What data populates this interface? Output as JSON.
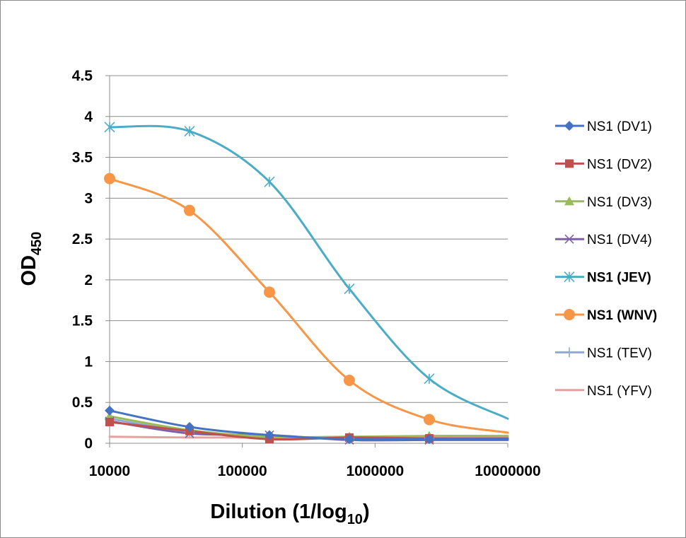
{
  "chart_data": {
    "type": "line",
    "title": "",
    "xlabel": "Dilution (1/log",
    "xlabel_sub": "10",
    "xlabel_tail": ")",
    "ylabel": "OD",
    "ylabel_sub": "450",
    "x_scale": "log",
    "xlim": [
      10000,
      10000000
    ],
    "ylim": [
      0,
      4.5
    ],
    "x_ticks": [
      10000,
      100000,
      1000000,
      10000000
    ],
    "x_tick_labels": [
      "10000",
      "100000",
      "1000000",
      "10000000"
    ],
    "y_ticks": [
      0,
      0.5,
      1,
      1.5,
      2,
      2.5,
      3,
      3.5,
      4,
      4.5
    ],
    "y_tick_labels": [
      "0",
      "0.5",
      "1",
      "1.5",
      "2",
      "2.5",
      "3",
      "3.5",
      "4",
      "4.5"
    ],
    "grid": "horizontal",
    "legend_position": "right",
    "x": [
      10000,
      40000,
      160000,
      640000,
      2560000,
      10000000
    ],
    "series": [
      {
        "name": "NS1 (DV1)",
        "color": "#4472c4",
        "marker": "diamond",
        "bold": false,
        "values": [
          0.4,
          0.2,
          0.1,
          0.05,
          0.05,
          0.05
        ]
      },
      {
        "name": "NS1 (DV2)",
        "color": "#c0504d",
        "marker": "square",
        "bold": false,
        "values": [
          0.26,
          0.15,
          0.05,
          0.07,
          0.06,
          0.06
        ]
      },
      {
        "name": "NS1 (DV3)",
        "color": "#9bbb59",
        "marker": "triangle",
        "bold": false,
        "values": [
          0.33,
          0.16,
          0.08,
          0.08,
          0.09,
          0.09
        ]
      },
      {
        "name": "NS1 (DV4)",
        "color": "#7f5fa8",
        "marker": "x",
        "bold": false,
        "values": [
          0.27,
          0.12,
          0.1,
          0.04,
          0.04,
          0.04
        ]
      },
      {
        "name": "NS1 (JEV)",
        "color": "#4bacc6",
        "marker": "star",
        "bold": true,
        "values": [
          3.87,
          3.82,
          3.2,
          1.89,
          0.79,
          0.3
        ]
      },
      {
        "name": "NS1 (WNV)",
        "color": "#f79646",
        "marker": "circle",
        "bold": true,
        "values": [
          3.24,
          2.85,
          1.85,
          0.77,
          0.29,
          0.13
        ]
      },
      {
        "name": "NS1 (TEV)",
        "color": "#8ea9d8",
        "marker": "plus",
        "bold": false,
        "values": [
          0.3,
          0.14,
          0.08,
          0.06,
          0.06,
          0.06
        ]
      },
      {
        "name": "NS1 (YFV)",
        "color": "#e6a19f",
        "marker": "none",
        "bold": false,
        "values": [
          0.08,
          0.07,
          0.07,
          0.07,
          0.07,
          0.07
        ]
      }
    ]
  }
}
